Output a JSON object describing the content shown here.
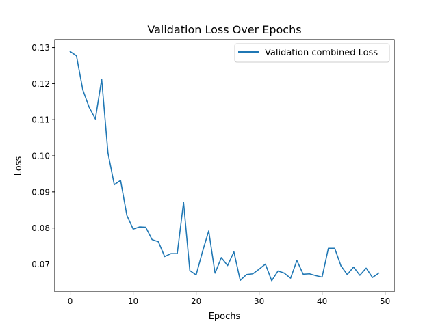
{
  "chart_data": {
    "type": "line",
    "title": "Validation Loss Over Epochs",
    "xlabel": "Epochs",
    "ylabel": "Loss",
    "xlim": [
      -2.45,
      51.45
    ],
    "ylim": [
      0.06233,
      0.13219
    ],
    "x_ticks": [
      0,
      10,
      20,
      30,
      40,
      50
    ],
    "x_tick_labels": [
      "0",
      "10",
      "20",
      "30",
      "40",
      "50"
    ],
    "y_ticks": [
      0.07,
      0.08,
      0.09,
      0.1,
      0.11,
      0.12,
      0.13
    ],
    "y_tick_labels": [
      "0.07",
      "0.08",
      "0.09",
      "0.10",
      "0.11",
      "0.12",
      "0.13"
    ],
    "grid": false,
    "legend_position": "top-right",
    "series": [
      {
        "name": "Validation combined Loss",
        "color": "#1f77b4",
        "x": [
          0,
          1,
          2,
          3,
          4,
          5,
          6,
          7,
          8,
          9,
          10,
          11,
          12,
          13,
          14,
          15,
          16,
          17,
          18,
          19,
          20,
          21,
          22,
          23,
          24,
          25,
          26,
          27,
          28,
          29,
          30,
          31,
          32,
          33,
          34,
          35,
          36,
          37,
          38,
          39,
          40,
          41,
          42,
          43,
          44,
          45,
          46,
          47,
          48,
          49
        ],
        "values": [
          0.1289,
          0.1277,
          0.1183,
          0.1135,
          0.1102,
          0.1212,
          0.1008,
          0.092,
          0.0932,
          0.0835,
          0.0797,
          0.0803,
          0.0802,
          0.0768,
          0.0762,
          0.0721,
          0.0729,
          0.0729,
          0.0871,
          0.0682,
          0.067,
          0.0734,
          0.0792,
          0.0675,
          0.0718,
          0.0696,
          0.0734,
          0.0655,
          0.0671,
          0.0673,
          0.0686,
          0.07,
          0.0654,
          0.0681,
          0.0675,
          0.0661,
          0.071,
          0.0672,
          0.0673,
          0.0668,
          0.0664,
          0.0744,
          0.0744,
          0.0695,
          0.0671,
          0.0692,
          0.0669,
          0.0689,
          0.0663,
          0.0675
        ]
      }
    ]
  }
}
